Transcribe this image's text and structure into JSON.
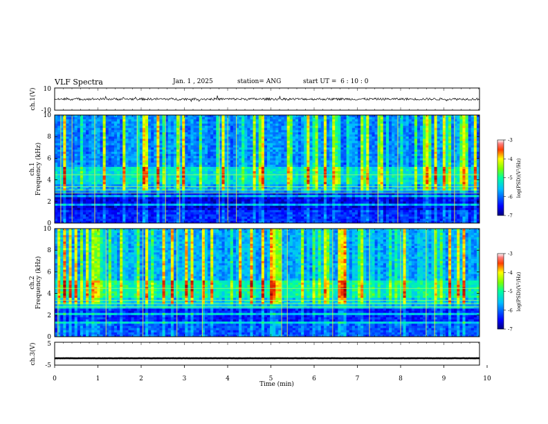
{
  "header": {
    "title": "VLF Spectra",
    "date": "Jan. 1 , 2025",
    "station": "station= ANG",
    "start_time": "start UT =  6 : 10 : 0"
  },
  "colors": {
    "colormap": [
      "#00007f",
      "#0000ff",
      "#007fff",
      "#00ffff",
      "#7fff7f",
      "#ffff00",
      "#ff7f00",
      "#ff0000",
      "#7f0000",
      "#ffffff"
    ],
    "trace": "#000000",
    "axes": "#000000",
    "background": "#ffffff"
  },
  "chart_data": [
    {
      "type": "line",
      "panel": "ch1-waveform",
      "ylabel": "ch.1(V)",
      "ylim": [
        -10,
        10
      ],
      "yticks": [
        {
          "value": 10,
          "label": "10"
        },
        {
          "value": -10,
          "label": "-10"
        }
      ],
      "xlim": [
        0,
        10
      ],
      "series": [
        {
          "description_level": 0,
          "amplitude": 1
        }
      ]
    },
    {
      "type": "heatmap",
      "panel": "ch1-spectrogram",
      "ylabel_top": "ch.1",
      "ylabel": "Frequency (kHz)",
      "ylim": [
        0,
        10
      ],
      "yticks": [
        {
          "value": 0,
          "label": "0"
        },
        {
          "value": 2,
          "label": "2"
        },
        {
          "value": 4,
          "label": "4"
        },
        {
          "value": 6,
          "label": "6"
        },
        {
          "value": 8,
          "label": "8"
        },
        {
          "value": 10,
          "label": "10"
        }
      ],
      "xlim": [
        0,
        10
      ],
      "colorbar": {
        "label": "log(PSD)(V²/Hz)",
        "range": [
          -7,
          -3
        ],
        "ticks": [
          {
            "value": -3,
            "label": "-3"
          },
          {
            "value": -4,
            "label": "-4"
          },
          {
            "value": -5,
            "label": "-5"
          },
          {
            "value": -6,
            "label": "-6"
          },
          {
            "value": -7,
            "label": "-7"
          }
        ]
      }
    },
    {
      "type": "heatmap",
      "panel": "ch2-spectrogram",
      "ylabel_top": "ch.2",
      "ylabel": "Frequency (kHz)",
      "ylim": [
        0,
        10
      ],
      "yticks": [
        {
          "value": 0,
          "label": "0"
        },
        {
          "value": 2,
          "label": "2"
        },
        {
          "value": 4,
          "label": "4"
        },
        {
          "value": 6,
          "label": "6"
        },
        {
          "value": 8,
          "label": "8"
        },
        {
          "value": 10,
          "label": "10"
        }
      ],
      "xlim": [
        0,
        10
      ],
      "colorbar": {
        "label": "log(PSD)(V²/Hz)",
        "range": [
          -7,
          -3
        ],
        "ticks": [
          {
            "value": -3,
            "label": "-3"
          },
          {
            "value": -4,
            "label": "-4"
          },
          {
            "value": -5,
            "label": "-5"
          },
          {
            "value": -6,
            "label": "-6"
          },
          {
            "value": -7,
            "label": "-7"
          }
        ]
      }
    },
    {
      "type": "line",
      "panel": "ch3-waveform",
      "ylabel": "ch.3(V)",
      "ylim": [
        -5,
        5
      ],
      "yticks": [
        {
          "value": 5,
          "label": "5"
        },
        {
          "value": -5,
          "label": "-5"
        }
      ],
      "xlim": [
        0,
        10
      ],
      "xlabel": "Time (min)",
      "xticks": [
        {
          "value": 0,
          "label": "0"
        },
        {
          "value": 1,
          "label": "1"
        },
        {
          "value": 2,
          "label": "2"
        },
        {
          "value": 3,
          "label": "3"
        },
        {
          "value": 4,
          "label": "4"
        },
        {
          "value": 5,
          "label": "5"
        },
        {
          "value": 6,
          "label": "6"
        },
        {
          "value": 7,
          "label": "7"
        },
        {
          "value": 8,
          "label": "8"
        },
        {
          "value": 9,
          "label": "9"
        },
        {
          "value": 10,
          "label": "10"
        }
      ],
      "series": [
        {
          "level": -2
        }
      ]
    }
  ]
}
